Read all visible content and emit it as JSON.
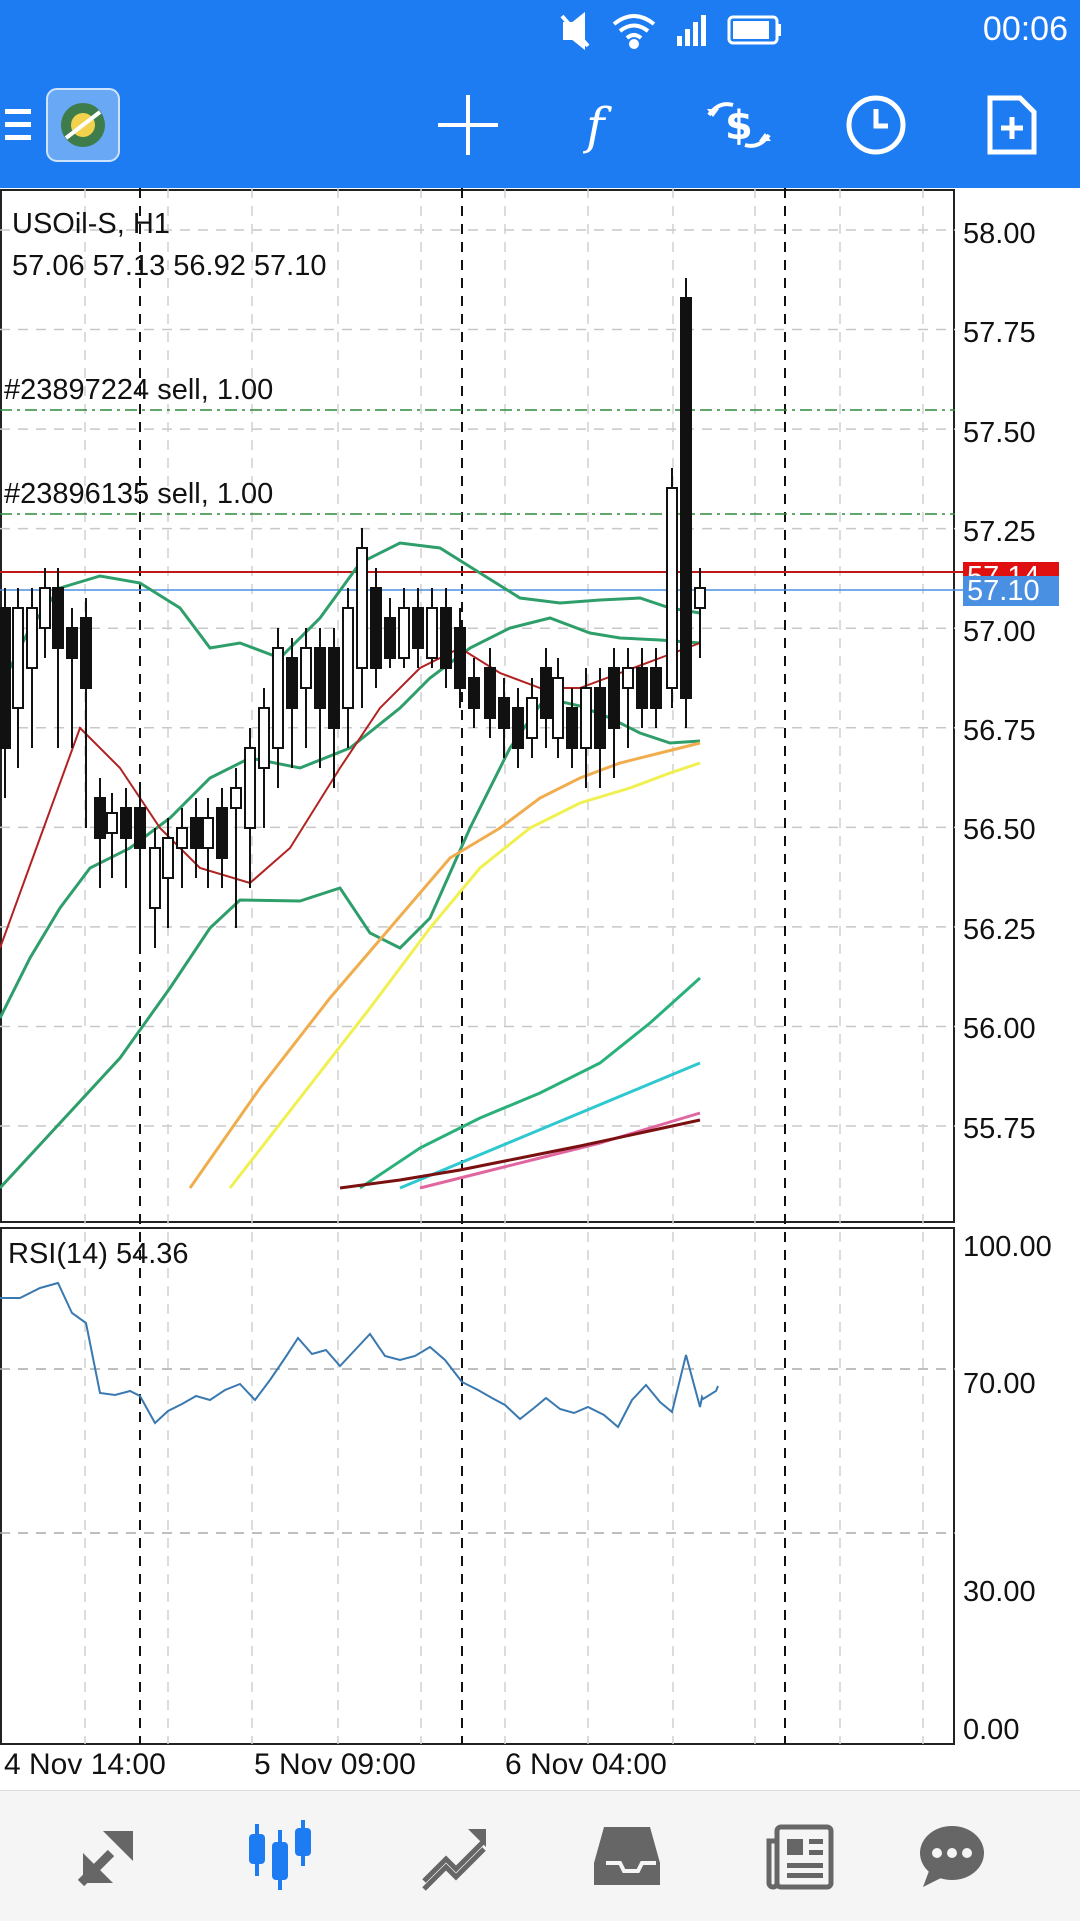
{
  "status_bar": {
    "time": "00:06"
  },
  "toolbar": {
    "buttons": [
      "menu-icon",
      "app-logo",
      "crosshair-icon",
      "indicators-icon",
      "trade-icon",
      "timeframe-icon",
      "new-object-icon"
    ]
  },
  "chart": {
    "symbol_timeframe": "USOil-S, H1",
    "ohlc": "57.06 57.13 56.92 57.10",
    "orders": [
      "#23897224 sell, 1.00",
      "#23896135 sell, 1.00"
    ],
    "price_axis": [
      "58.00",
      "57.75",
      "57.50",
      "57.25",
      "57.00",
      "56.75",
      "56.50",
      "56.25",
      "56.00",
      "55.75"
    ],
    "bid_tag": "57.14",
    "current_tag": "57.10",
    "colors": {
      "bid": "#e01010",
      "current": "#4a90e2",
      "bollinger": "#2e9e6b",
      "ma_fast": "#b22222",
      "ma_orange": "#f0ad4e",
      "ma_yellow": "#f0f050"
    }
  },
  "rsi": {
    "label": "RSI(14) 54.36",
    "axis": [
      "100.00",
      "70.00",
      "30.00",
      "0.00"
    ]
  },
  "time_axis": [
    "4 Nov 14:00",
    "5 Nov 09:00",
    "6 Nov 04:00"
  ],
  "bottom_nav": [
    "quotes-icon",
    "chart-icon",
    "trade-icon",
    "history-icon",
    "news-icon",
    "chat-icon"
  ]
}
